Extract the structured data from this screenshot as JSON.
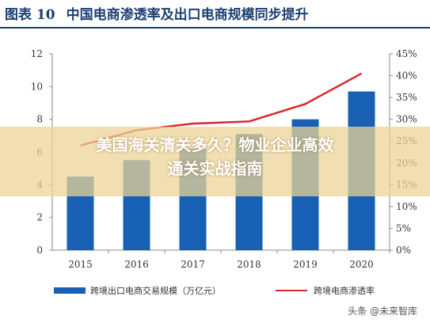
{
  "header": {
    "figure_label": "图表 10",
    "title": "中国电商渗透率及出口电商规模同步提升"
  },
  "overlay": {
    "line1": "美国海关清关多久？物业企业高效",
    "line2": "通关实战指南"
  },
  "watermark": "头条 @未来智库",
  "colors": {
    "bar": "#1760b4",
    "line": "#d9292c",
    "title": "#1d3f73"
  },
  "chart_data": {
    "type": "bar+line",
    "categories": [
      "2015",
      "2016",
      "2017",
      "2018",
      "2019",
      "2020"
    ],
    "series": [
      {
        "name": "跨境出口电商交易规模（万亿元）",
        "type": "bar",
        "axis": "left",
        "values": [
          4.5,
          5.5,
          6.2,
          7.1,
          8.0,
          9.7
        ]
      },
      {
        "name": "跨境电商渗透率",
        "type": "line",
        "axis": "right",
        "values": [
          24.0,
          27.5,
          29.0,
          29.5,
          33.5,
          40.5
        ]
      }
    ],
    "y_left": {
      "min": 0,
      "max": 12,
      "ticks": [
        "0",
        "2",
        "4",
        "6",
        "8",
        "10",
        "12"
      ]
    },
    "y_right": {
      "min": 0,
      "max": 45,
      "ticks": [
        "0%",
        "5%",
        "10%",
        "15%",
        "20%",
        "25%",
        "30%",
        "35%",
        "40%",
        "45%"
      ]
    },
    "legend_position": "bottom",
    "grid": false
  }
}
